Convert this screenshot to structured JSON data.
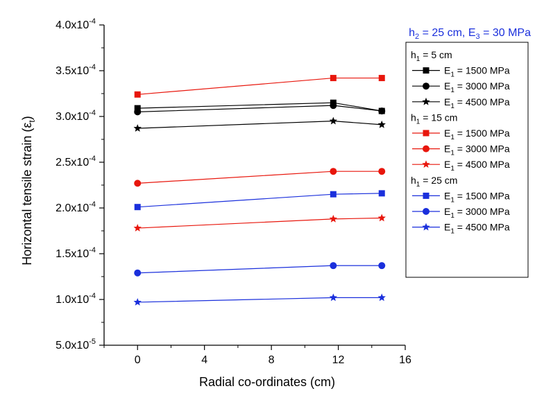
{
  "chart_data": {
    "type": "line",
    "annotation_parts": {
      "h_letter": "h",
      "h_sub": "2",
      "h_value": " = 25 cm, E",
      "e_sub": "3",
      "e_value": " = 30 MPa"
    },
    "xlabel": "Radial co-ordinates (cm)",
    "ylabel_parts": {
      "main": "Horizontal tensile strain (ε",
      "sub": "t",
      "close": ")"
    },
    "xlim": [
      -2,
      16
    ],
    "ylim": [
      5e-05,
      0.0004
    ],
    "xticks": [
      {
        "value": 0,
        "label": "0"
      },
      {
        "value": 4,
        "label": "4"
      },
      {
        "value": 8,
        "label": "8"
      },
      {
        "value": 12,
        "label": "12"
      },
      {
        "value": 16,
        "label": "16"
      }
    ],
    "yticks": [
      {
        "value": 5e-05,
        "label": "5.0x10"
      },
      {
        "value": 0.0001,
        "label": "1.0x10"
      },
      {
        "value": 0.00015,
        "label": "1.5x10"
      },
      {
        "value": 0.0002,
        "label": "2.0x10"
      },
      {
        "value": 0.00025,
        "label": "2.5x10"
      },
      {
        "value": 0.0003,
        "label": "3.0x10"
      },
      {
        "value": 0.00035,
        "label": "3.5x10"
      },
      {
        "value": 0.0004,
        "label": "4.0x10"
      }
    ],
    "ytick_exponents": [
      "-5",
      "-4",
      "-4",
      "-4",
      "-4",
      "-4",
      "-4",
      "-4"
    ],
    "x": [
      0,
      11.7,
      14.6
    ],
    "groups": [
      {
        "label_parts": {
          "h_letter": "h",
          "h_sub": "1",
          "h_value": " = 5 cm"
        },
        "color": "#000000"
      },
      {
        "label_parts": {
          "h_letter": "h",
          "h_sub": "1",
          "h_value": " = 15 cm"
        },
        "color": "#e8160c"
      },
      {
        "label_parts": {
          "h_letter": "h",
          "h_sub": "1",
          "h_value": " = 25 cm"
        },
        "color": "#1a2fdc"
      }
    ],
    "series": [
      {
        "group": 0,
        "marker": "square",
        "color": "#000000",
        "name_parts": {
          "e": "E",
          "sub": "1",
          "rest": " = 1500 MPa"
        },
        "values": [
          0.000309,
          0.000315,
          0.000306
        ]
      },
      {
        "group": 0,
        "marker": "circle",
        "color": "#000000",
        "name_parts": {
          "e": "E",
          "sub": "1",
          "rest": " = 3000 MPa"
        },
        "values": [
          0.000305,
          0.000312,
          0.000306
        ]
      },
      {
        "group": 0,
        "marker": "star",
        "color": "#000000",
        "name_parts": {
          "e": "E",
          "sub": "1",
          "rest": " = 4500 MPa"
        },
        "values": [
          0.000287,
          0.000295,
          0.000291
        ]
      },
      {
        "group": 1,
        "marker": "square",
        "color": "#e8160c",
        "name_parts": {
          "e": "E",
          "sub": "1",
          "rest": " = 1500 MPa"
        },
        "values": [
          0.000324,
          0.000342,
          0.000342
        ]
      },
      {
        "group": 1,
        "marker": "circle",
        "color": "#e8160c",
        "name_parts": {
          "e": "E",
          "sub": "1",
          "rest": " = 3000 MPa"
        },
        "values": [
          0.000227,
          0.00024,
          0.00024
        ]
      },
      {
        "group": 1,
        "marker": "star",
        "color": "#e8160c",
        "name_parts": {
          "e": "E",
          "sub": "1",
          "rest": " = 4500 MPa"
        },
        "values": [
          0.000178,
          0.000188,
          0.000189
        ]
      },
      {
        "group": 2,
        "marker": "square",
        "color": "#1a2fdc",
        "name_parts": {
          "e": "E",
          "sub": "1",
          "rest": " = 1500 MPa"
        },
        "values": [
          0.000201,
          0.000215,
          0.000216
        ]
      },
      {
        "group": 2,
        "marker": "circle",
        "color": "#1a2fdc",
        "name_parts": {
          "e": "E",
          "sub": "1",
          "rest": " = 3000 MPa"
        },
        "values": [
          0.000129,
          0.000137,
          0.000137
        ]
      },
      {
        "group": 2,
        "marker": "star",
        "color": "#1a2fdc",
        "name_parts": {
          "e": "E",
          "sub": "1",
          "rest": " = 4500 MPa"
        },
        "values": [
          9.7e-05,
          0.000102,
          0.000102
        ]
      }
    ],
    "legend_position": "right",
    "grid": false
  }
}
